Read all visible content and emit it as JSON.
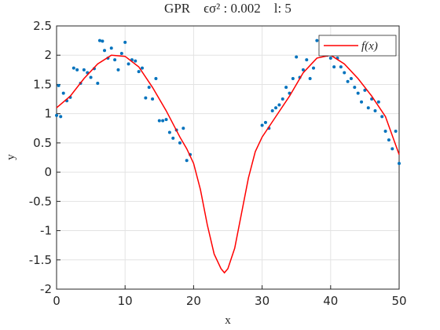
{
  "chart_data": {
    "type": "line",
    "title": "GPR    ϵσ² : 0.002    l: 5",
    "x_label": "x",
    "y_label": "y",
    "xlim": [
      0,
      50
    ],
    "ylim": [
      -2,
      2.5
    ],
    "xticks": [
      0,
      10,
      20,
      30,
      40,
      50
    ],
    "yticks": [
      -2,
      -1.5,
      -1,
      -0.5,
      0,
      0.5,
      1,
      1.5,
      2,
      2.5
    ],
    "grid": true,
    "legend": "northeast",
    "series": [
      {
        "mode": "markers",
        "color": "#0072bd",
        "x": [
          0,
          0.3,
          0.6,
          1,
          1.5,
          2,
          2.5,
          3,
          3.5,
          4,
          4.5,
          5,
          5.5,
          6,
          6.3,
          6.7,
          7,
          7.5,
          8,
          8.5,
          9,
          9.5,
          10,
          10.5,
          11,
          11.5,
          12,
          12.5,
          13,
          13.5,
          14,
          14.5,
          15,
          15.5,
          16,
          16.5,
          17,
          17.5,
          18,
          18.5,
          19,
          19.5,
          30,
          30.5,
          31,
          31.5,
          32,
          32.5,
          33,
          33.5,
          34,
          34.5,
          35,
          35.5,
          36,
          36.5,
          37,
          37.5,
          38,
          38.5,
          39,
          39.5,
          40,
          40.5,
          41,
          41.5,
          42,
          42.5,
          43,
          43.5,
          44,
          44.5,
          45,
          45.5,
          46,
          46.5,
          47,
          47.5,
          48,
          48.5,
          49,
          49.5,
          50
        ],
        "y": [
          0.97,
          1.48,
          0.95,
          1.35,
          1.22,
          1.28,
          1.78,
          1.75,
          1.52,
          1.75,
          1.7,
          1.62,
          1.77,
          1.52,
          2.25,
          2.24,
          2.08,
          1.95,
          2.12,
          1.92,
          1.75,
          2.03,
          2.22,
          1.85,
          1.92,
          1.9,
          1.72,
          1.78,
          1.27,
          1.45,
          1.25,
          1.6,
          0.88,
          0.88,
          0.9,
          0.68,
          0.58,
          0.72,
          0.5,
          0.75,
          0.2,
          0.3,
          0.8,
          0.85,
          0.75,
          1.05,
          1.1,
          1.15,
          1.25,
          1.45,
          1.35,
          1.6,
          1.97,
          1.62,
          1.75,
          1.92,
          1.6,
          1.78,
          2.25,
          2.1,
          2.15,
          2.0,
          1.95,
          1.8,
          1.95,
          1.8,
          1.7,
          1.55,
          1.6,
          1.45,
          1.35,
          1.2,
          1.4,
          1.1,
          1.25,
          1.05,
          1.2,
          0.95,
          0.7,
          0.55,
          0.4,
          0.7,
          0.15
        ]
      },
      {
        "mode": "line",
        "name": "f(x)",
        "color": "#ff0000",
        "x": [
          0,
          2,
          4,
          6,
          8,
          10,
          12,
          14,
          16,
          18,
          19,
          20,
          21,
          22,
          23,
          24,
          24.5,
          25,
          26,
          27,
          28,
          29,
          30,
          32,
          34,
          36,
          38,
          40,
          42,
          44,
          46,
          48,
          50
        ],
        "y": [
          1.1,
          1.3,
          1.6,
          1.85,
          2.0,
          1.98,
          1.8,
          1.45,
          1.05,
          0.6,
          0.4,
          0.15,
          -0.3,
          -0.9,
          -1.4,
          -1.65,
          -1.72,
          -1.65,
          -1.3,
          -0.7,
          -0.1,
          0.35,
          0.6,
          0.95,
          1.3,
          1.7,
          1.95,
          2.0,
          1.85,
          1.6,
          1.3,
          0.95,
          0.3
        ]
      }
    ]
  }
}
